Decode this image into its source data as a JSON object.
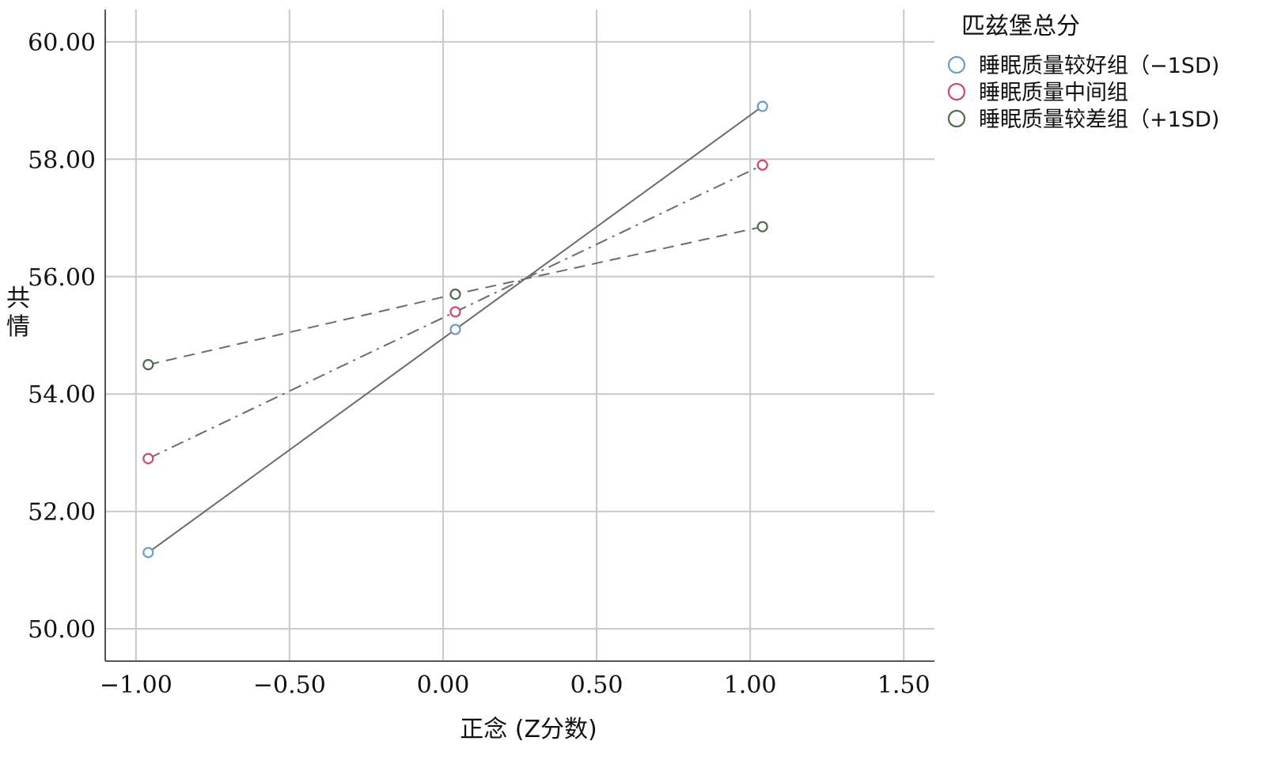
{
  "chart_data": {
    "type": "line",
    "xlabel": "正念 (Z分数)",
    "ylabel": "共情",
    "xlim": [
      -1.1,
      1.6
    ],
    "ylim": [
      49.45,
      60.55
    ],
    "x_ticks": [
      -1.0,
      -0.5,
      0.0,
      0.5,
      1.0,
      1.5
    ],
    "x_tick_labels": [
      "−1.00",
      "−0.50",
      "0.00",
      "0.50",
      "1.00",
      "1.50"
    ],
    "y_ticks": [
      50,
      52,
      54,
      56,
      58,
      60
    ],
    "y_tick_labels": [
      "50.00",
      "52.00",
      "54.00",
      "56.00",
      "58.00",
      "60.00"
    ],
    "grid": true,
    "legend": {
      "title": "匹兹堡总分",
      "placement": "top-right"
    },
    "series": [
      {
        "name": "睡眠质量较好组（−1SD)",
        "color": "#6a9ccf",
        "line_style": "solid",
        "x": [
          -0.96,
          0.04,
          1.04
        ],
        "y": [
          51.3,
          55.1,
          58.9
        ]
      },
      {
        "name": "睡眠质量中间组",
        "color": "#d2466e",
        "line_style": "dash-dot",
        "x": [
          -0.96,
          0.04,
          1.04
        ],
        "y": [
          52.9,
          55.4,
          57.9
        ]
      },
      {
        "name": "睡眠质量较差组（+1SD)",
        "color": "#4a6e48",
        "line_style": "dashed",
        "x": [
          -0.96,
          0.04,
          1.04
        ],
        "y": [
          54.5,
          55.7,
          56.85
        ]
      }
    ]
  }
}
